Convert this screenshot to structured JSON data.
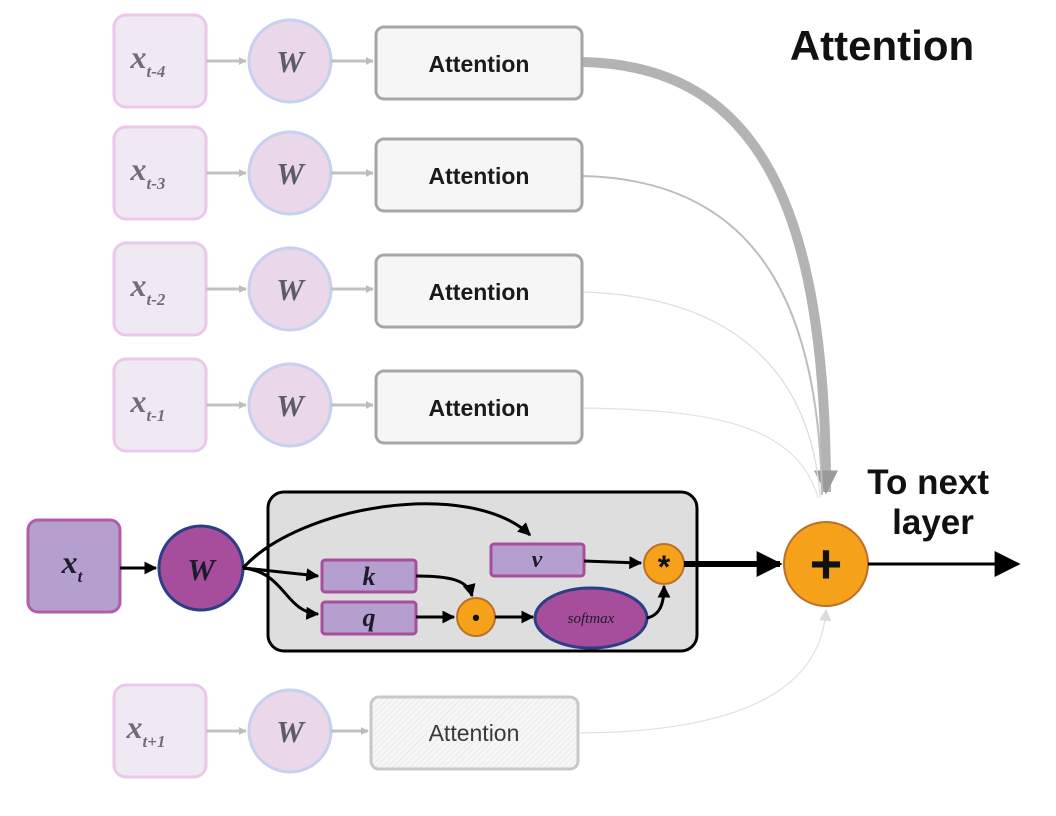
{
  "title": "Attention",
  "output_label": [
    "To next",
    "layer"
  ],
  "current_input": {
    "var": "x",
    "sub": "t"
  },
  "weight_label": "W",
  "rows": [
    {
      "sub": "t-4",
      "block": "Attention"
    },
    {
      "sub": "t-3",
      "block": "Attention"
    },
    {
      "sub": "t-2",
      "block": "Attention"
    },
    {
      "sub": "t-1",
      "block": "Attention"
    }
  ],
  "future_row": {
    "sub": "t+1",
    "block": "Attention"
  },
  "attention_detail": {
    "k": "k",
    "q": "q",
    "v": "v",
    "dot": "•",
    "softmax": "softmax",
    "multiply": "*"
  },
  "sum_symbol": "+",
  "colors": {
    "faded_node_fill": "#ece6f2",
    "faded_node_stroke": "#e8c6e6",
    "faded_w_fill": "#ead7ea",
    "active_input_fill": "#b59fcf",
    "active_w_fill": "#a64d9c",
    "operator_fill": "#f5a21a",
    "attention_panel_fill": "#dedede",
    "arrow_gray": "#b8b8b8"
  }
}
